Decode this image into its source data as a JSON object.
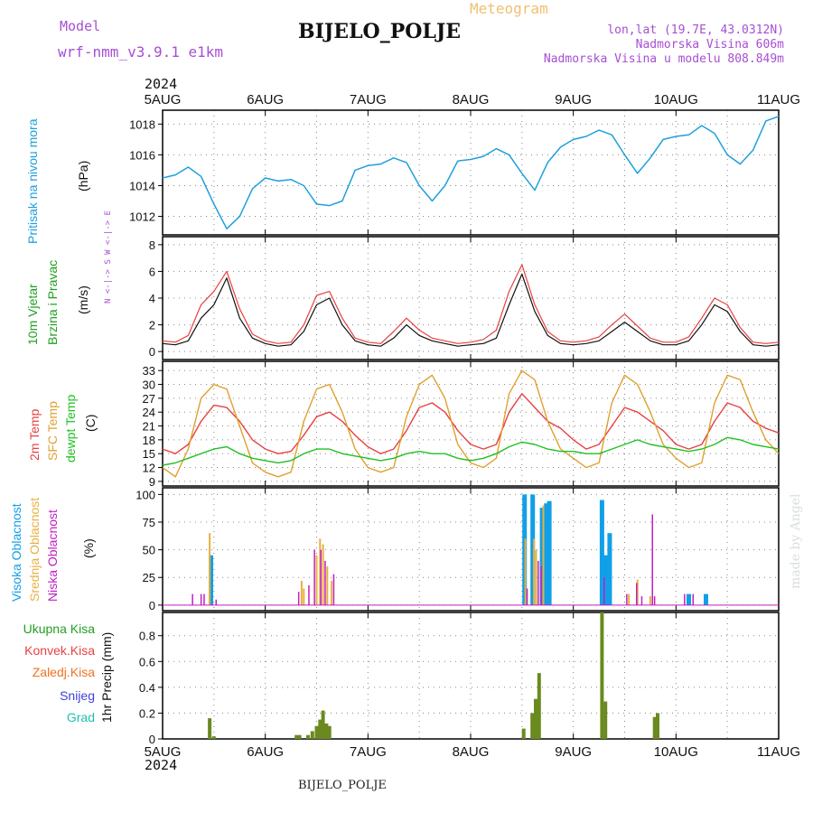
{
  "header": {
    "model_label": "Model",
    "model_name": "wrf-nmm_v3.9.1  e1km",
    "meteogram_label": "Meteogram",
    "station_title": "BIJELO_POLJE",
    "lonlat": "lon,lat (19.7E, 43.0312N)",
    "altitude": "Nadmorska Visina 606m",
    "model_altitude": "Nadmorska Visina u modelu 808.849m",
    "year": "2024",
    "footer_station": "BIJELO_POLJE",
    "credit": "made by Angel"
  },
  "time_axis": {
    "labels": [
      "5AUG",
      "6AUG",
      "7AUG",
      "8AUG",
      "9AUG",
      "10AUG",
      "11AUG"
    ],
    "range_hours": [
      0,
      144
    ]
  },
  "colors": {
    "pressure": "#1ea0dc",
    "t2m": "#e84040",
    "sfc": "#e0a030",
    "dewpt": "#20c020",
    "visoka": "#10a0e8",
    "srednja": "#e8b040",
    "niska": "#c020c0",
    "ukupna": "#108010",
    "konvek": "#e84040",
    "zaledj": "#f07020",
    "snijeg": "#4040e0",
    "grad": "#20c0b0",
    "precip_bar": "#6a8a20"
  },
  "chart_data": [
    {
      "id": "pressure",
      "type": "line",
      "title": "",
      "ylabel_left": "Pritisak na nivou mora",
      "ylabel_unit": "(hPa)",
      "yticks": [
        1012,
        1014,
        1016,
        1018
      ],
      "ylim": [
        1010.8,
        1018.9
      ],
      "grid": true,
      "x_hours": [
        0,
        3,
        6,
        9,
        12,
        15,
        18,
        21,
        24,
        27,
        30,
        33,
        36,
        39,
        42,
        45,
        48,
        51,
        54,
        57,
        60,
        63,
        66,
        69,
        72,
        75,
        78,
        81,
        84,
        87,
        90,
        93,
        96,
        99,
        102,
        105,
        108,
        111,
        114,
        117,
        120,
        123,
        126,
        129,
        132,
        135,
        138,
        141,
        144
      ],
      "values": [
        1014.5,
        1014.7,
        1015.2,
        1014.6,
        1012.8,
        1011.2,
        1012.0,
        1013.8,
        1014.5,
        1014.3,
        1014.4,
        1014.0,
        1012.8,
        1012.7,
        1013.0,
        1015.0,
        1015.3,
        1015.4,
        1015.8,
        1015.5,
        1014.0,
        1013.0,
        1014.0,
        1015.6,
        1015.7,
        1015.9,
        1016.4,
        1016.0,
        1014.8,
        1013.7,
        1015.5,
        1016.5,
        1017.0,
        1017.2,
        1017.6,
        1017.3,
        1016.0,
        1014.8,
        1015.8,
        1017.0,
        1017.2,
        1017.3,
        1017.9,
        1017.4,
        1016.0,
        1015.4,
        1016.3,
        1018.2,
        1018.5
      ]
    },
    {
      "id": "wind",
      "type": "line",
      "title": "",
      "ylabel_left": "10m Vjetar",
      "ylabel_left2": "Brzina i Pravac",
      "ylabel_unit": "(m/s)",
      "direction_legend": "N <-|-> S  W <-|-> E",
      "yticks": [
        0,
        2,
        4,
        6,
        8
      ],
      "ylim": [
        -0.6,
        8.6
      ],
      "grid": true,
      "x_hours": [
        0,
        3,
        6,
        9,
        12,
        15,
        18,
        21,
        24,
        27,
        30,
        33,
        36,
        39,
        42,
        45,
        48,
        51,
        54,
        57,
        60,
        63,
        66,
        69,
        72,
        75,
        78,
        81,
        84,
        87,
        90,
        93,
        96,
        99,
        102,
        105,
        108,
        111,
        114,
        117,
        120,
        123,
        126,
        129,
        132,
        135,
        138,
        141,
        144
      ],
      "speed_values": [
        0.6,
        0.5,
        0.8,
        2.5,
        3.5,
        5.5,
        2.5,
        1.0,
        0.6,
        0.4,
        0.5,
        1.5,
        3.5,
        4.0,
        2.0,
        0.8,
        0.5,
        0.4,
        1.0,
        2.0,
        1.2,
        0.8,
        0.6,
        0.4,
        0.5,
        0.6,
        1.0,
        3.5,
        5.8,
        3.0,
        1.2,
        0.6,
        0.5,
        0.6,
        0.8,
        1.5,
        2.2,
        1.5,
        0.8,
        0.5,
        0.5,
        0.8,
        2.0,
        3.5,
        3.0,
        1.5,
        0.5,
        0.4,
        0.5
      ],
      "gust_values": [
        0.8,
        0.7,
        1.2,
        3.5,
        4.5,
        6.0,
        3.2,
        1.3,
        0.8,
        0.6,
        0.7,
        2.0,
        4.2,
        4.5,
        2.5,
        1.0,
        0.7,
        0.6,
        1.5,
        2.5,
        1.6,
        1.0,
        0.8,
        0.6,
        0.7,
        0.9,
        1.6,
        4.5,
        6.5,
        3.5,
        1.5,
        0.8,
        0.7,
        0.8,
        1.1,
        2.0,
        2.8,
        1.9,
        1.0,
        0.7,
        0.7,
        1.1,
        2.5,
        4.0,
        3.5,
        1.8,
        0.7,
        0.6,
        0.7
      ]
    },
    {
      "id": "temperature",
      "type": "line",
      "title": "",
      "ylabel_series": [
        "2m Temp",
        "SFC Temp",
        "dewpt Temp"
      ],
      "ylabel_unit": "(C)",
      "yticks": [
        9,
        12,
        15,
        18,
        21,
        24,
        27,
        30,
        33
      ],
      "ylim": [
        8,
        35
      ],
      "grid": true,
      "x_hours": [
        0,
        3,
        6,
        9,
        12,
        15,
        18,
        21,
        24,
        27,
        30,
        33,
        36,
        39,
        42,
        45,
        48,
        51,
        54,
        57,
        60,
        63,
        66,
        69,
        72,
        75,
        78,
        81,
        84,
        87,
        90,
        93,
        96,
        99,
        102,
        105,
        108,
        111,
        114,
        117,
        120,
        123,
        126,
        129,
        132,
        135,
        138,
        141,
        144
      ],
      "series": [
        {
          "name": "2m Temp",
          "values": [
            16,
            15,
            17,
            22,
            25.5,
            25,
            22,
            18,
            16,
            15,
            15.5,
            19,
            23,
            24,
            22,
            19,
            16.5,
            15,
            16,
            20,
            25,
            26,
            24,
            20,
            17,
            16,
            17,
            24,
            28,
            25,
            22,
            20.5,
            18,
            16,
            17,
            21,
            25,
            24,
            22,
            20,
            17,
            16,
            17,
            22,
            26,
            25,
            22,
            20.5,
            19.5
          ]
        },
        {
          "name": "SFC Temp",
          "values": [
            12,
            10,
            16,
            27,
            30,
            29,
            21,
            13,
            11,
            10,
            11,
            22,
            29,
            30,
            24,
            16,
            12,
            11,
            12,
            23,
            30,
            32,
            27,
            17,
            13,
            12,
            14,
            28,
            33,
            31,
            22,
            16,
            14,
            12,
            13,
            26,
            32,
            30,
            24,
            17,
            14,
            12,
            13,
            26,
            32,
            31,
            24,
            18,
            15
          ]
        },
        {
          "name": "dewpt Temp",
          "values": [
            12.5,
            13,
            14,
            15,
            16,
            16.5,
            15,
            14,
            13.5,
            13,
            13.5,
            15,
            16,
            16,
            15,
            14.5,
            14,
            13.5,
            14,
            15,
            15.5,
            15,
            15,
            14,
            13.5,
            14,
            15,
            16.5,
            17.5,
            17,
            16,
            15.5,
            15.5,
            15,
            15,
            16,
            17,
            18,
            17,
            16.5,
            16,
            15.5,
            16,
            17,
            18.5,
            18,
            17,
            16.5,
            16
          ]
        }
      ]
    },
    {
      "id": "cloud",
      "type": "bar",
      "title": "",
      "ylabel_series": [
        "Visoka Oblacnost",
        "Srednja Oblacnost",
        "Niska Oblacnost"
      ],
      "ylabel_unit": "(%)",
      "yticks": [
        0,
        25,
        50,
        75,
        100
      ],
      "ylim": [
        -5,
        106
      ],
      "grid": true,
      "series": [
        {
          "name": "Visoka Oblacnost",
          "points": [
            [
              11.3,
              45
            ],
            [
              84.6,
              100
            ],
            [
              86.5,
              100
            ],
            [
              88.7,
              88
            ],
            [
              89.7,
              92
            ],
            [
              90.4,
              94
            ],
            [
              102.7,
              95
            ],
            [
              103.5,
              45
            ],
            [
              104.5,
              65
            ],
            [
              123,
              10
            ],
            [
              127,
              10
            ]
          ]
        },
        {
          "name": "Srednja Oblacnost",
          "points": [
            [
              11,
              65
            ],
            [
              32.5,
              22
            ],
            [
              33,
              15
            ],
            [
              36,
              45
            ],
            [
              36.8,
              60
            ],
            [
              37.5,
              55
            ],
            [
              38.5,
              35
            ],
            [
              39.5,
              22
            ],
            [
              84.8,
              60
            ],
            [
              86.8,
              60
            ],
            [
              87.3,
              50
            ],
            [
              89,
              90
            ],
            [
              111,
              23
            ],
            [
              109,
              10
            ],
            [
              114,
              8
            ]
          ]
        },
        {
          "name": "Niska Oblacnost",
          "points": [
            [
              7,
              10
            ],
            [
              9,
              10
            ],
            [
              9.7,
              10
            ],
            [
              12.5,
              5
            ],
            [
              31.8,
              12
            ],
            [
              34.2,
              18
            ],
            [
              35.5,
              50
            ],
            [
              37,
              50
            ],
            [
              38,
              40
            ],
            [
              40,
              28
            ],
            [
              85.2,
              15
            ],
            [
              87.8,
              40
            ],
            [
              88.5,
              35
            ],
            [
              103.2,
              25
            ],
            [
              108.5,
              10
            ],
            [
              110.8,
              20
            ],
            [
              112,
              8
            ],
            [
              114.5,
              82
            ],
            [
              115,
              8
            ],
            [
              122,
              10
            ],
            [
              124,
              10
            ]
          ]
        }
      ]
    },
    {
      "id": "precip",
      "type": "bar",
      "title": "",
      "ylabel_series": [
        "Ukupna Kisa",
        "Konvek.Kisa",
        "Zaledj.Kisa",
        "Snijeg",
        "Grad"
      ],
      "ylabel_unit": "1hr Precip (mm)",
      "yticks": [
        0,
        0.2,
        0.4,
        0.6,
        0.8
      ],
      "ylim": [
        0,
        0.98
      ],
      "grid": true,
      "series": [
        {
          "name": "Ukupna Kisa",
          "points": [
            [
              11,
              0.16
            ],
            [
              12,
              0.02
            ],
            [
              31.3,
              0.03
            ],
            [
              32,
              0.03
            ],
            [
              34,
              0.03
            ],
            [
              35,
              0.06
            ],
            [
              36,
              0.1
            ],
            [
              36.8,
              0.15
            ],
            [
              37.5,
              0.22
            ],
            [
              38.3,
              0.12
            ],
            [
              39,
              0.1
            ],
            [
              84.4,
              0.08
            ],
            [
              86.4,
              0.2
            ],
            [
              87.2,
              0.31
            ],
            [
              88,
              0.51
            ],
            [
              102.7,
              0.98
            ],
            [
              103.5,
              0.29
            ],
            [
              115,
              0.17
            ],
            [
              115.7,
              0.2
            ]
          ]
        }
      ]
    }
  ]
}
